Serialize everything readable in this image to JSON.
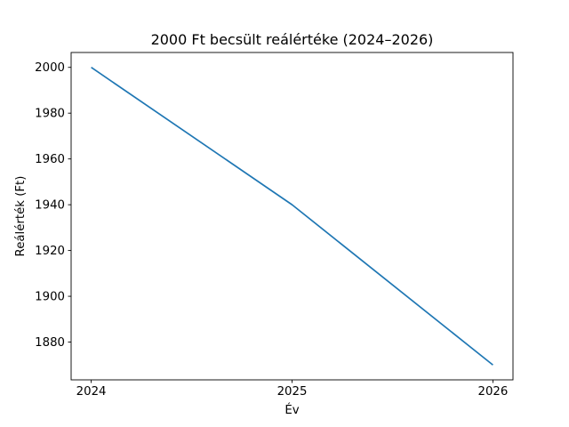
{
  "chart_data": {
    "type": "line",
    "title": "2000 Ft becsült reálértéke (2024–2026)",
    "xlabel": "Év",
    "ylabel": "Reálérték (Ft)",
    "x": [
      2024,
      2025,
      2026
    ],
    "values": [
      2000,
      1940,
      1870
    ],
    "xticks": [
      2024,
      2025,
      2026
    ],
    "yticks": [
      1880,
      1900,
      1920,
      1940,
      1960,
      1980,
      2000
    ],
    "xlim": [
      2023.9,
      2026.1
    ],
    "ylim": [
      1863.5,
      2006.5
    ],
    "line_color": "#1f77b4",
    "spine_color": "#000000",
    "background_color": "#ffffff",
    "grid": false,
    "legend_position": "none",
    "markers": false
  }
}
